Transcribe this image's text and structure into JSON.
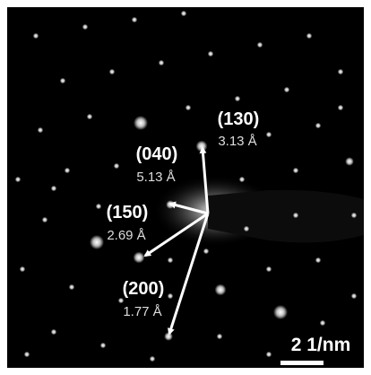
{
  "annotations": [
    {
      "plane": "(130)",
      "spacing": "3.13 Å"
    },
    {
      "plane": "(040)",
      "spacing": "5.13 Å"
    },
    {
      "plane": "(150)",
      "spacing": "2.69 Å"
    },
    {
      "plane": "(200)",
      "spacing": "1.77 Å"
    }
  ],
  "scale_bar": {
    "label": "2 1/nm"
  }
}
